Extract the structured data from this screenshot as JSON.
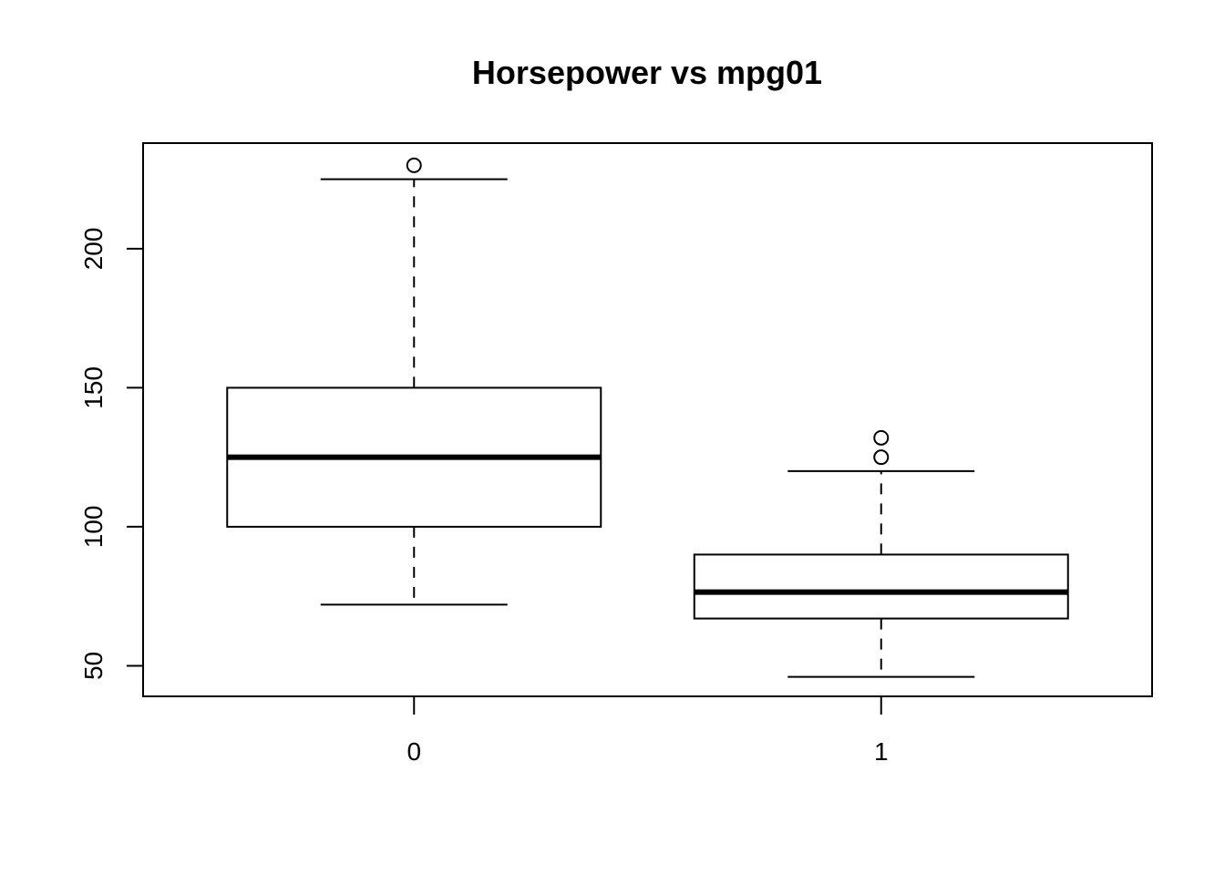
{
  "chart_data": {
    "type": "boxplot",
    "title": "Horsepower vs mpg01",
    "xlabel": "",
    "ylabel": "",
    "categories": [
      "0",
      "1"
    ],
    "boxes": [
      {
        "category": "0",
        "min": 72,
        "q1": 100,
        "median": 125,
        "q3": 150,
        "max": 225,
        "outliers": [
          230
        ]
      },
      {
        "category": "1",
        "min": 46,
        "q1": 67,
        "median": 76.5,
        "q3": 90,
        "max": 120,
        "outliers": [
          125,
          132
        ]
      }
    ],
    "ylim": [
      39,
      238
    ],
    "yticks": [
      50,
      100,
      150,
      200
    ],
    "ytick_labels": [
      "50",
      "100",
      "150",
      "200"
    ],
    "grid": false,
    "colors": {
      "stroke": "#000000",
      "fill": "#ffffff"
    }
  }
}
